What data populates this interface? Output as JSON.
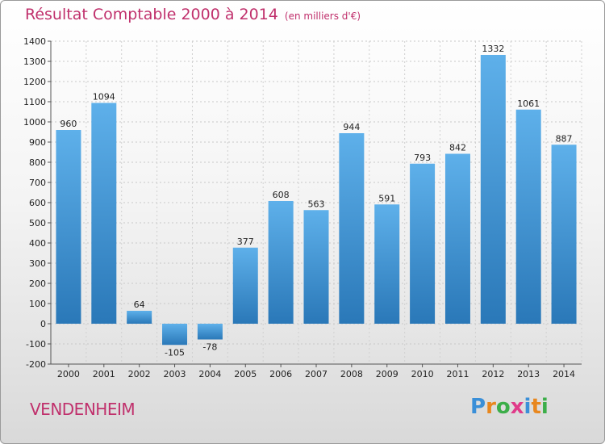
{
  "header": {
    "title": "Résultat Comptable 2000 à 2014",
    "subtitle": "(en milliers d'€)"
  },
  "footer": {
    "city": "VENDENHEIM",
    "logo_letters": [
      "P",
      "r",
      "o",
      "x",
      "i",
      "t",
      "i"
    ],
    "logo_colors": [
      "#3a8fd8",
      "#e8871e",
      "#3cae49",
      "#e03b8a",
      "#3a8fd8",
      "#e8871e",
      "#3cae49"
    ]
  },
  "chart_data": {
    "type": "bar",
    "title": "Résultat Comptable 2000 à 2014",
    "categories": [
      "2000",
      "2001",
      "2002",
      "2003",
      "2004",
      "2005",
      "2006",
      "2007",
      "2008",
      "2009",
      "2010",
      "2011",
      "2012",
      "2013",
      "2014"
    ],
    "values": [
      960,
      1094,
      64,
      -105,
      -78,
      377,
      608,
      563,
      944,
      591,
      793,
      842,
      1332,
      1061,
      887
    ],
    "value_labels": [
      "960",
      "1094",
      "64",
      "-105",
      "-78",
      "377",
      "608",
      "563",
      "944",
      "591",
      "793",
      "842",
      "1332",
      "1061",
      "887"
    ],
    "ylim": [
      -200,
      1400
    ],
    "yticks": [
      -200,
      -100,
      0,
      100,
      200,
      300,
      400,
      500,
      600,
      700,
      800,
      900,
      1000,
      1100,
      1200,
      1300,
      1400
    ],
    "grid": true,
    "bar_color_light": "#5eb0ea",
    "bar_color_dark": "#2a78b8"
  }
}
